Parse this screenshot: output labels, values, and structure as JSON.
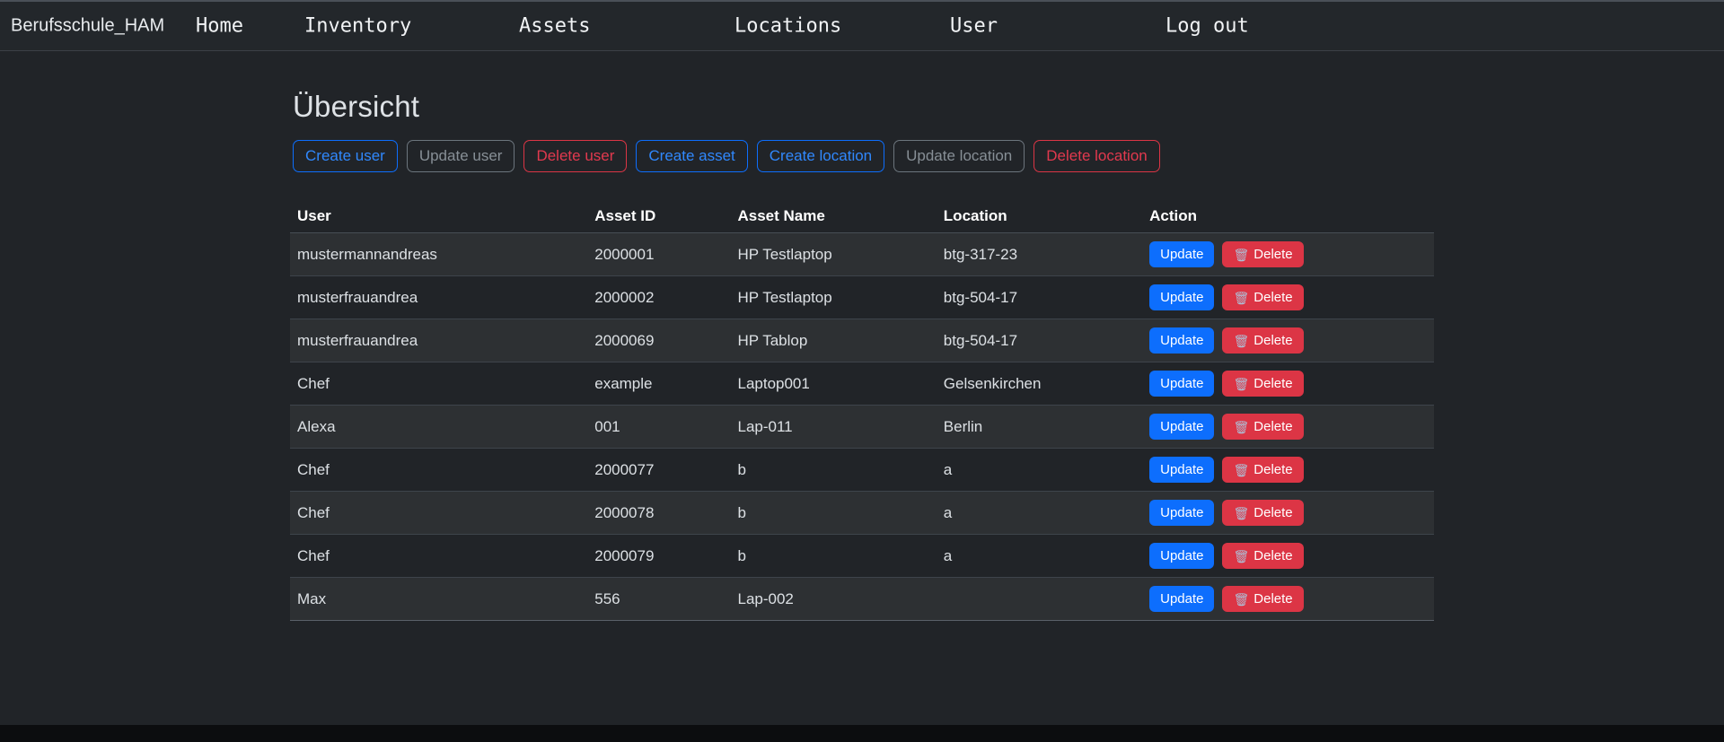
{
  "navbar": {
    "brand": "Berufsschule_HAM",
    "items": [
      {
        "label": "Home"
      },
      {
        "label": "Inventory"
      },
      {
        "label": "Assets"
      },
      {
        "label": "Locations"
      },
      {
        "label": "User"
      },
      {
        "label": "Log out"
      }
    ]
  },
  "page": {
    "title": "Übersicht"
  },
  "toolbar": {
    "buttons": [
      {
        "label": "Create user",
        "variant": "primary"
      },
      {
        "label": "Update user",
        "variant": "secondary"
      },
      {
        "label": "Delete user",
        "variant": "danger"
      },
      {
        "label": "Create asset",
        "variant": "primary"
      },
      {
        "label": "Create location",
        "variant": "primary"
      },
      {
        "label": "Update location",
        "variant": "secondary"
      },
      {
        "label": "Delete location",
        "variant": "danger"
      }
    ]
  },
  "table": {
    "columns": [
      "User",
      "Asset ID",
      "Asset Name",
      "Location",
      "Action"
    ],
    "actions": {
      "update_label": "Update",
      "delete_label": "Delete",
      "trash_icon": "🗑"
    },
    "rows": [
      {
        "user": "mustermannandreas",
        "asset_id": "2000001",
        "asset_name": "HP Testlaptop",
        "location": "btg-317-23"
      },
      {
        "user": "musterfrauandrea",
        "asset_id": "2000002",
        "asset_name": "HP Testlaptop",
        "location": "btg-504-17"
      },
      {
        "user": "musterfrauandrea",
        "asset_id": "2000069",
        "asset_name": "HP Tablop",
        "location": "btg-504-17"
      },
      {
        "user": "Chef",
        "asset_id": "example",
        "asset_name": "Laptop001",
        "location": "Gelsenkirchen"
      },
      {
        "user": "Alexa",
        "asset_id": "001",
        "asset_name": "Lap-011",
        "location": "Berlin"
      },
      {
        "user": "Chef",
        "asset_id": "2000077",
        "asset_name": "b",
        "location": "a"
      },
      {
        "user": "Chef",
        "asset_id": "2000078",
        "asset_name": "b",
        "location": "a"
      },
      {
        "user": "Chef",
        "asset_id": "2000079",
        "asset_name": "b",
        "location": "a"
      },
      {
        "user": "Max",
        "asset_id": "556",
        "asset_name": "Lap-002",
        "location": ""
      }
    ]
  },
  "colors": {
    "primary": "#0d6efd",
    "secondary": "#6c757d",
    "danger": "#dc3545",
    "navbar_bg": "#23272b",
    "body_bg": "#212428"
  }
}
